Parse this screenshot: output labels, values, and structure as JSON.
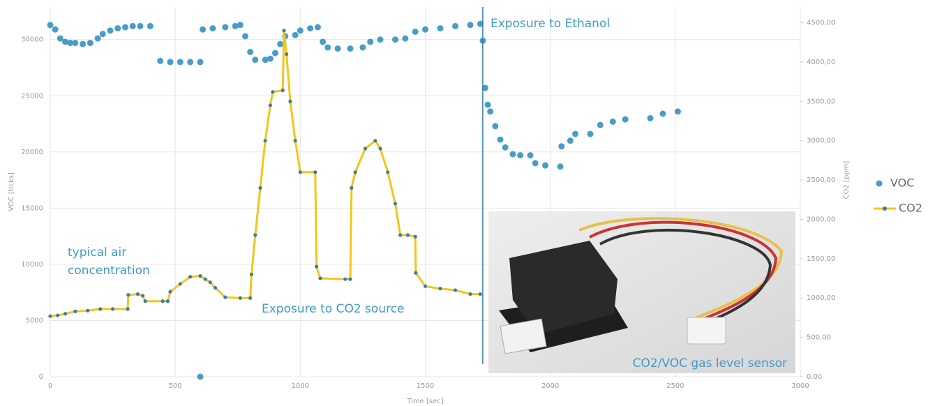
{
  "chart_data": {
    "type": "scatter",
    "xlabel": "Time [sec]",
    "ylabel": "VOC [ticks]",
    "y2label": "CO2 [ppm]",
    "xlim": [
      0,
      3000
    ],
    "xticks": [
      0,
      500,
      1000,
      1500,
      2000,
      2500,
      3000
    ],
    "ylim": [
      0,
      32900
    ],
    "yticks": [
      0,
      5000,
      10000,
      15000,
      20000,
      25000,
      30000
    ],
    "y2lim": [
      0,
      4700
    ],
    "y2ticks": [
      {
        "value": 0,
        "label": "0,00"
      },
      {
        "value": 500,
        "label": "500,00"
      },
      {
        "value": 1000,
        "label": "1000,00"
      },
      {
        "value": 1500,
        "label": "1500,00"
      },
      {
        "value": 2000,
        "label": "2000,00"
      },
      {
        "value": 2500,
        "label": "2500,00"
      },
      {
        "value": 3000,
        "label": "3000,00"
      },
      {
        "value": 3500,
        "label": "3500,00"
      },
      {
        "value": 4000,
        "label": "4000,00"
      },
      {
        "value": 4500,
        "label": "4500,00"
      }
    ],
    "grid": true,
    "legend": "right",
    "series": [
      {
        "name": "VOC",
        "type": "scatter",
        "color": "#4a9cc8",
        "x": [
          0,
          20,
          40,
          60,
          80,
          100,
          130,
          160,
          190,
          210,
          240,
          270,
          300,
          330,
          360,
          400,
          440,
          480,
          520,
          560,
          600,
          600,
          610,
          650,
          700,
          740,
          760,
          780,
          800,
          820,
          860,
          880,
          900,
          920,
          940,
          980,
          1000,
          1040,
          1070,
          1090,
          1110,
          1150,
          1200,
          1250,
          1280,
          1320,
          1380,
          1420,
          1460,
          1500,
          1560,
          1620,
          1680,
          1720,
          1730,
          1740,
          1750,
          1760,
          1780,
          1800,
          1820,
          1850,
          1880,
          1920,
          1940,
          1980,
          2040,
          2045,
          2080,
          2100,
          2160,
          2200,
          2250,
          2300,
          2400,
          2450,
          2510
        ],
        "values": [
          31300,
          30900,
          30100,
          29800,
          29700,
          29700,
          29600,
          29700,
          30100,
          30500,
          30800,
          31000,
          31100,
          31200,
          31200,
          31200,
          28100,
          28000,
          28000,
          28000,
          28000,
          0,
          30900,
          31000,
          31100,
          31200,
          31300,
          30300,
          28900,
          28200,
          28200,
          28300,
          28800,
          29600,
          30300,
          30400,
          30800,
          31000,
          31100,
          29800,
          29300,
          29200,
          29200,
          29300,
          29800,
          30000,
          30000,
          30100,
          30700,
          30900,
          31000,
          31200,
          31300,
          31400,
          29900,
          25700,
          24200,
          23600,
          22300,
          21100,
          20400,
          19800,
          19700,
          19700,
          19000,
          18800,
          18700,
          20500,
          21000,
          21600,
          21600,
          22400,
          22700,
          22900,
          23000,
          23400,
          23600
        ]
      },
      {
        "name": "CO2",
        "type": "line",
        "axis": "y2",
        "color": "#f5c518",
        "marker_color": "#3a7fa0",
        "x": [
          0,
          30,
          60,
          100,
          150,
          200,
          250,
          310,
          312,
          350,
          370,
          380,
          450,
          470,
          480,
          520,
          560,
          600,
          620,
          640,
          660,
          700,
          760,
          800,
          805,
          820,
          840,
          860,
          880,
          890,
          930,
          935,
          945,
          960,
          980,
          1000,
          1060,
          1065,
          1080,
          1180,
          1200,
          1205,
          1220,
          1260,
          1300,
          1320,
          1350,
          1380,
          1400,
          1430,
          1460,
          1462,
          1500,
          1560,
          1620,
          1680,
          1720
        ],
        "values": [
          770,
          780,
          800,
          830,
          840,
          860,
          860,
          860,
          1040,
          1050,
          1030,
          960,
          960,
          960,
          1080,
          1180,
          1270,
          1280,
          1240,
          1200,
          1130,
          1010,
          1000,
          1000,
          1300,
          1800,
          2400,
          3000,
          3450,
          3620,
          3640,
          4400,
          4100,
          3500,
          3000,
          2600,
          2600,
          1400,
          1250,
          1240,
          1240,
          2400,
          2600,
          2900,
          3000,
          2900,
          2600,
          2200,
          1800,
          1800,
          1780,
          1320,
          1150,
          1120,
          1100,
          1050,
          1050
        ]
      }
    ],
    "vline": 1730,
    "annotations": [
      {
        "lines": [
          "typical air",
          "concentration"
        ]
      },
      {
        "lines": [
          "Exposure to CO2 source"
        ]
      },
      {
        "lines": [
          "Exposure to Ethanol"
        ]
      }
    ],
    "inset_caption": "CO2/VOC gas level sensor"
  }
}
